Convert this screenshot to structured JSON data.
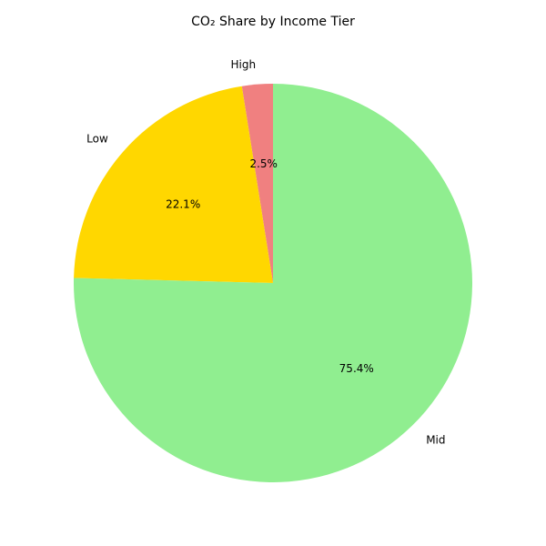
{
  "chart_data": {
    "type": "pie",
    "title": "CO₂ Share by Income Tier",
    "slices": [
      {
        "label": "High",
        "value": 2.5,
        "pct_label": "2.5%",
        "color": "#f08080"
      },
      {
        "label": "Low",
        "value": 22.1,
        "pct_label": "22.1%",
        "color": "#ffd700"
      },
      {
        "label": "Mid",
        "value": 75.4,
        "pct_label": "75.4%",
        "color": "#90ee90"
      }
    ],
    "start_angle_deg": 90,
    "direction": "counterclockwise"
  }
}
